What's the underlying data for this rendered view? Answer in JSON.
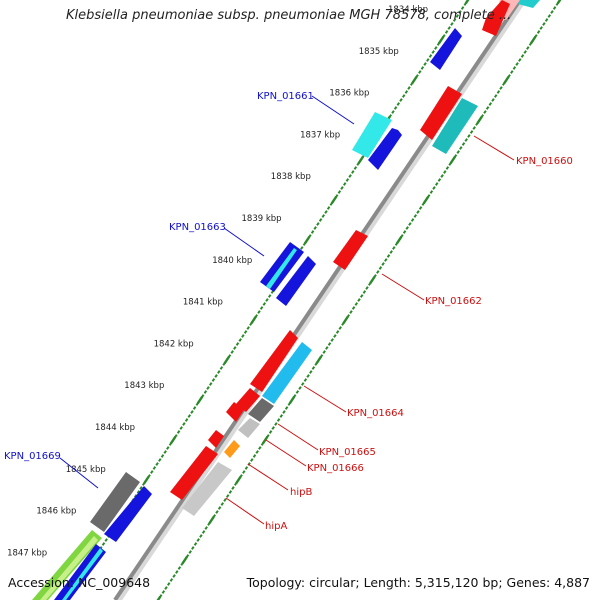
{
  "title": "Klebsiella pneumoniae subsp. pneumoniae MGH 78578, complete ...",
  "footer": {
    "accession": "Accession: NC_009648",
    "summary": "Topology: circular; Length: 5,315,120 bp; Genes: 4,887"
  },
  "colors": {
    "backbone": "#8a8a8a",
    "tick_major": "#2a8a2a",
    "tick_minor": "#2a8a2a",
    "label_forward": "#1010cc",
    "label_reverse": "#cc1010"
  },
  "ticks": [
    "1834 kbp",
    "1835 kbp",
    "1836 kbp",
    "1837 kbp",
    "1838 kbp",
    "1839 kbp",
    "1840 kbp",
    "1841 kbp",
    "1842 kbp",
    "1843 kbp",
    "1844 kbp",
    "1845 kbp",
    "1846 kbp",
    "1847 kbp"
  ],
  "labels": {
    "kpn01661": "KPN_01661",
    "kpn01663": "KPN_01663",
    "kpn01669": "KPN_01669",
    "kpn01660": "KPN_01660",
    "kpn01662": "KPN_01662",
    "kpn01664": "KPN_01664",
    "kpn01665": "KPN_01665",
    "kpn01666": "KPN_01666",
    "hipB": "hipB",
    "hipA": "hipA"
  }
}
